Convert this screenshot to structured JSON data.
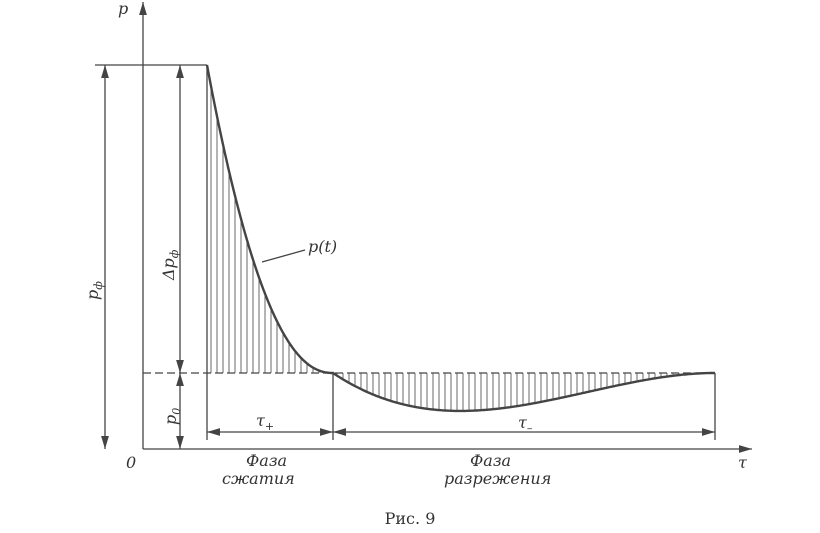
{
  "axes": {
    "y_label": "p",
    "x_label": "τ",
    "origin": "0"
  },
  "labels": {
    "p_phi": {
      "base": "p",
      "sub": "ф"
    },
    "delta_p_phi": {
      "base": "Δp",
      "sub": "ф"
    },
    "p0": {
      "base": "p",
      "sub": "0"
    },
    "curve": "p(t)",
    "tau_plus": {
      "base": "τ",
      "sub": "+"
    },
    "tau_minus": {
      "base": "τ",
      "sub": "–"
    }
  },
  "phases": {
    "compression": [
      "Фаза",
      "сжатия"
    ],
    "rarefaction": [
      "Фаза",
      "разрежения"
    ]
  },
  "caption": "Рис. 9"
}
